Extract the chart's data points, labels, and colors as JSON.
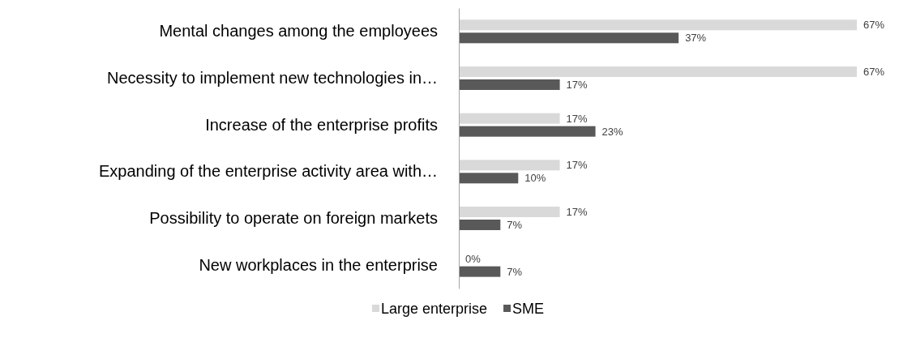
{
  "chart_data": {
    "type": "bar",
    "orientation": "horizontal",
    "categories": [
      "Mental changes among the employees",
      "Necessity to implement new technologies in…",
      "Increase of the enterprise profits",
      "Expanding of the enterprise activity area with…",
      "Possibility to operate on foreign markets",
      "New workplaces in the enterprise"
    ],
    "series": [
      {
        "name": "Large enterprise",
        "color": "#d9d9d9",
        "values": [
          67,
          67,
          17,
          17,
          17,
          0
        ],
        "value_labels": [
          "67%",
          "67%",
          "17%",
          "17%",
          "17%",
          "0%"
        ]
      },
      {
        "name": "SME",
        "color": "#595959",
        "values": [
          37,
          17,
          23,
          10,
          7,
          7
        ],
        "value_labels": [
          "37%",
          "17%",
          "23%",
          "10%",
          "7%",
          "7%"
        ]
      }
    ],
    "tick_labels": "y",
    "legend": "bottom"
  }
}
